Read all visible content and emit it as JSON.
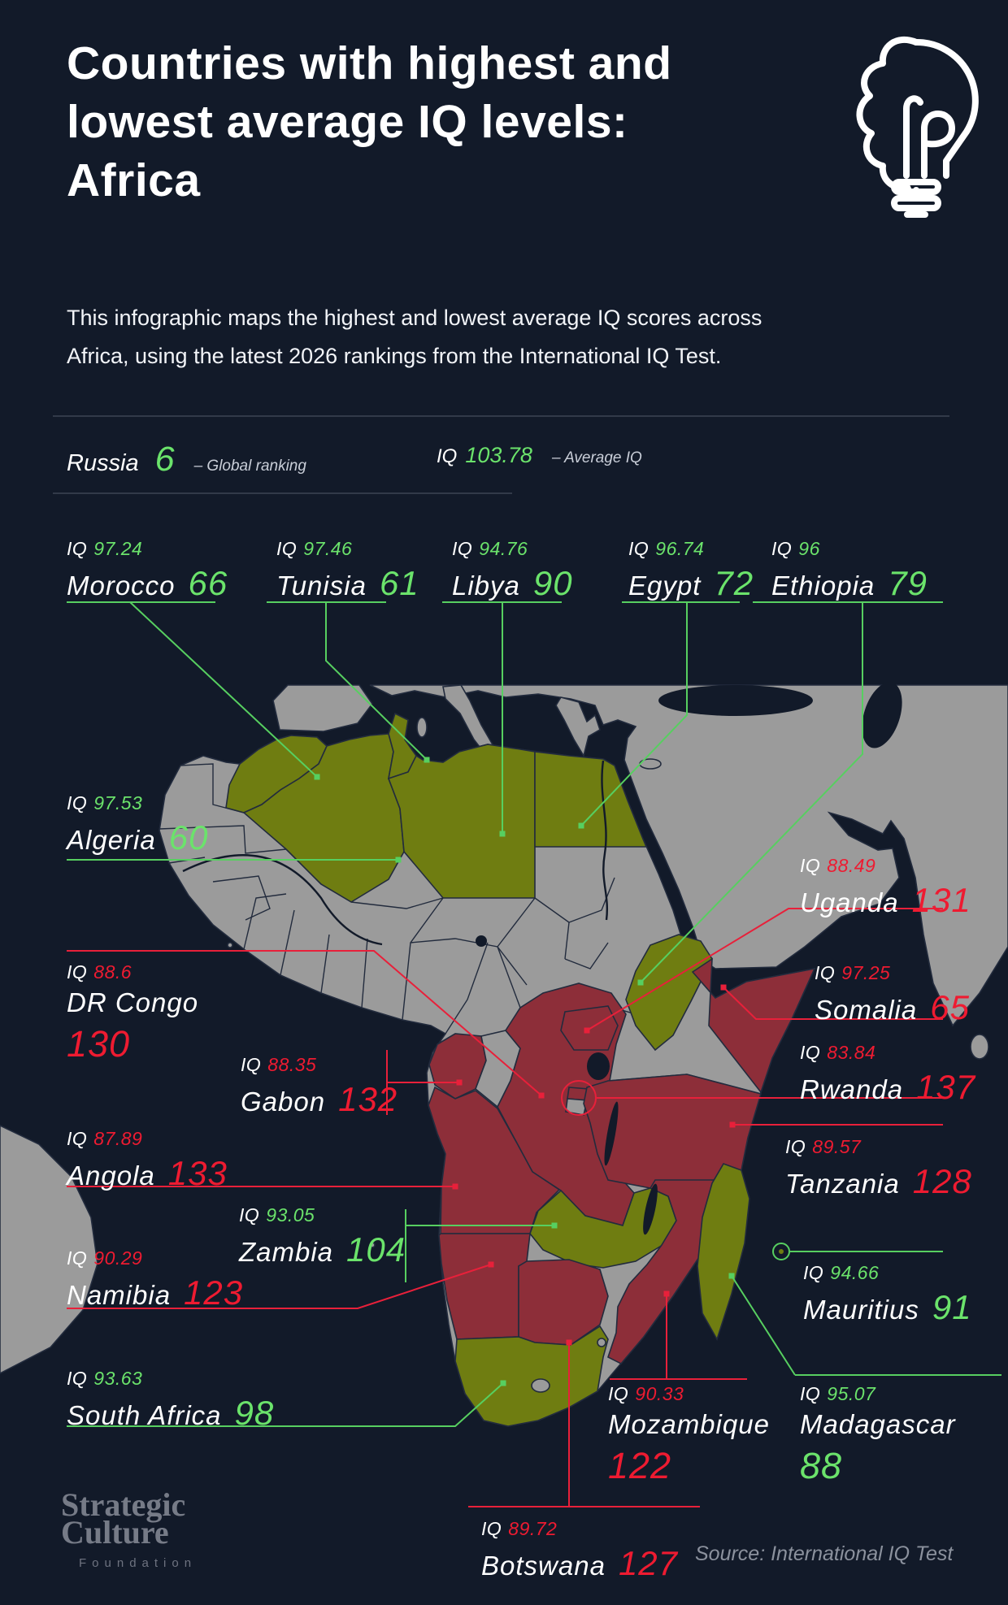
{
  "title": {
    "line1": "Countries with highest and",
    "line2": "lowest average IQ levels:",
    "line3": "Africa"
  },
  "subtitle": {
    "line1": "This infographic maps the highest and lowest average IQ scores across",
    "line2": "Africa, using the latest 2026 rankings from the International IQ Test."
  },
  "legend": {
    "sample_country": "Russia",
    "sample_rank": "6",
    "rank_caption": "–   Global ranking",
    "iq_label": "IQ",
    "sample_iq": "103.78",
    "iq_caption": "–   Average IQ"
  },
  "icons": {
    "header_icon": "brain-lightbulb-icon",
    "mauritius_marker": "circled-dot-icon"
  },
  "countries": [
    {
      "id": "morocco",
      "name": "Morocco",
      "iq": "97.24",
      "rank": "66",
      "tone": "high"
    },
    {
      "id": "tunisia",
      "name": "Tunisia",
      "iq": "97.46",
      "rank": "61",
      "tone": "high"
    },
    {
      "id": "libya",
      "name": "Libya",
      "iq": "94.76",
      "rank": "90",
      "tone": "high"
    },
    {
      "id": "egypt",
      "name": "Egypt",
      "iq": "96.74",
      "rank": "72",
      "tone": "high"
    },
    {
      "id": "ethiopia",
      "name": "Ethiopia",
      "iq": "96",
      "rank": "79",
      "tone": "high"
    },
    {
      "id": "algeria",
      "name": "Algeria",
      "iq": "97.53",
      "rank": "60",
      "tone": "high"
    },
    {
      "id": "uganda",
      "name": "Uganda",
      "iq": "88.49",
      "rank": "131",
      "tone": "low"
    },
    {
      "id": "drcongo",
      "name": "DR Congo",
      "iq": "88.6",
      "rank": "130",
      "tone": "low"
    },
    {
      "id": "somalia",
      "name": "Somalia",
      "iq": "97.25",
      "rank": "65",
      "tone": "low"
    },
    {
      "id": "gabon",
      "name": "Gabon",
      "iq": "88.35",
      "rank": "132",
      "tone": "low"
    },
    {
      "id": "rwanda",
      "name": "Rwanda",
      "iq": "83.84",
      "rank": "137",
      "tone": "low"
    },
    {
      "id": "angola",
      "name": "Angola",
      "iq": "87.89",
      "rank": "133",
      "tone": "low"
    },
    {
      "id": "tanzania",
      "name": "Tanzania",
      "iq": "89.57",
      "rank": "128",
      "tone": "low"
    },
    {
      "id": "zambia",
      "name": "Zambia",
      "iq": "93.05",
      "rank": "104",
      "tone": "high"
    },
    {
      "id": "namibia",
      "name": "Namibia",
      "iq": "90.29",
      "rank": "123",
      "tone": "low"
    },
    {
      "id": "mauritius",
      "name": "Mauritius",
      "iq": "94.66",
      "rank": "91",
      "tone": "high"
    },
    {
      "id": "southafrica",
      "name": "South Africa",
      "iq": "93.63",
      "rank": "98",
      "tone": "high"
    },
    {
      "id": "mozambique",
      "name": "Mozambique",
      "iq": "90.33",
      "rank": "122",
      "tone": "low"
    },
    {
      "id": "madagascar",
      "name": "Madagascar",
      "iq": "95.07",
      "rank": "88",
      "tone": "high"
    },
    {
      "id": "botswana",
      "name": "Botswana",
      "iq": "89.72",
      "rank": "127",
      "tone": "low"
    }
  ],
  "iq_prefix": "IQ",
  "footer": {
    "logo_line1": "Strategic",
    "logo_line2": "Culture",
    "logo_line3": "Foundation",
    "source": "Source: International IQ Test"
  },
  "colors": {
    "background": "#121a29",
    "green_text": "#6be36b",
    "red_text": "#ee1b31",
    "green_map": "#6f7d11",
    "red_map": "#8d2e39",
    "land_gray": "#9b9b9b",
    "leader_green": "#57cf60",
    "leader_red": "#e8203a",
    "divider": "#3d4454",
    "muted_text": "#8b919d"
  }
}
